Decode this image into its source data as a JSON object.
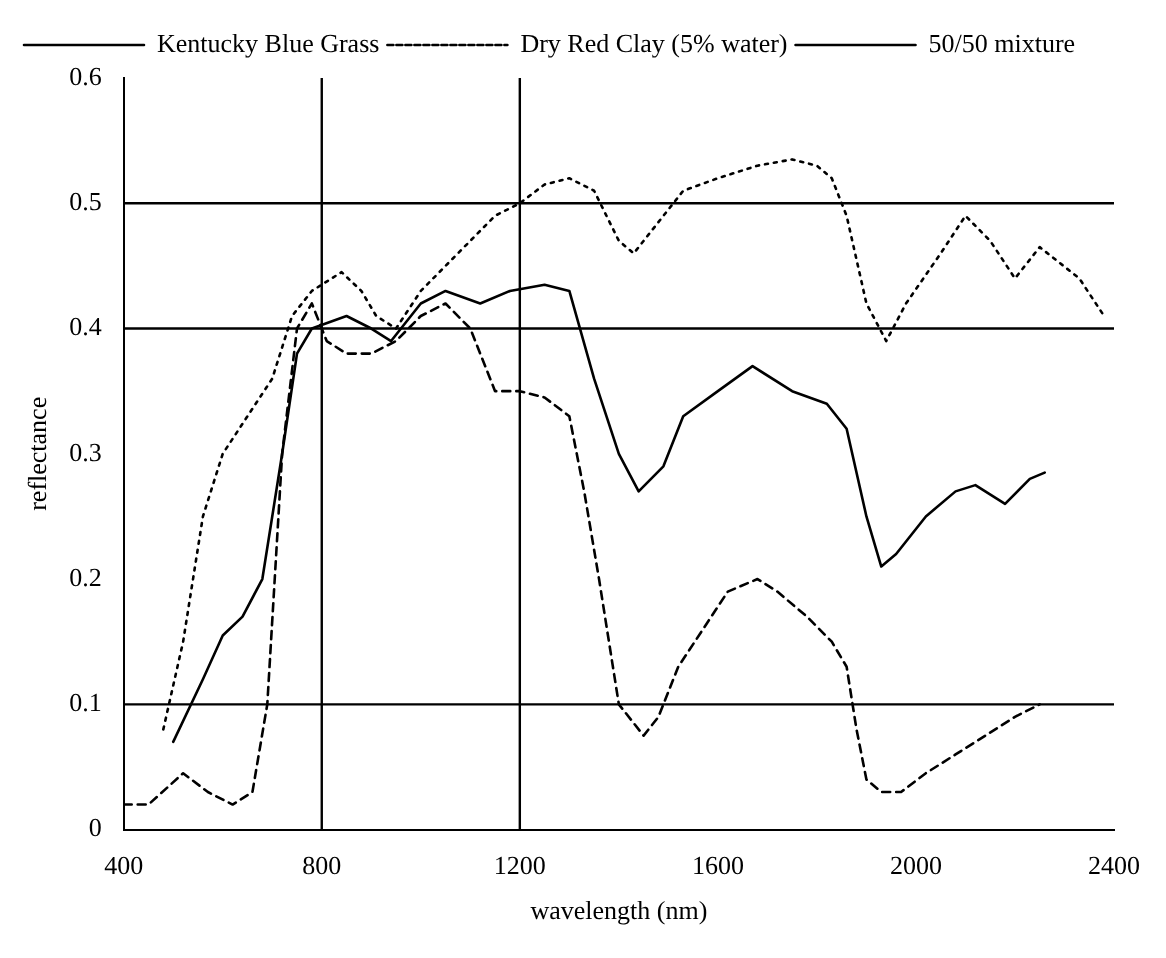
{
  "chart_data": {
    "type": "line",
    "xlabel": "wavelength (nm)",
    "ylabel": "reflectance",
    "xlim": [
      400,
      2400
    ],
    "xticks": [
      400,
      800,
      1200,
      1600,
      2000,
      2400
    ],
    "ylim": [
      0,
      0.6
    ],
    "yticks": [
      0,
      0.1,
      0.2,
      0.3,
      0.4,
      0.5,
      0.6
    ],
    "grid": false,
    "legend": "top left",
    "marker": "none",
    "ref_lines": [
      {
        "axis": "y",
        "value": 0.1,
        "color": "#000000"
      },
      {
        "axis": "y",
        "value": 0.4,
        "color": "#000000"
      },
      {
        "axis": "y",
        "value": 0.5,
        "color": "#000000"
      },
      {
        "axis": "x",
        "value": 800,
        "color": "#000000"
      },
      {
        "axis": "x",
        "value": 1200,
        "color": "#000000"
      }
    ],
    "series": [
      {
        "name": "Kentucky Blue Grass",
        "color": "#000000",
        "line_style": "dashed",
        "x": [
          400,
          450,
          520,
          570,
          620,
          660,
          690,
          720,
          750,
          780,
          810,
          850,
          900,
          950,
          1000,
          1050,
          1100,
          1150,
          1200,
          1250,
          1300,
          1330,
          1360,
          1400,
          1450,
          1480,
          1520,
          1570,
          1620,
          1680,
          1720,
          1780,
          1830,
          1860,
          1880,
          1900,
          1930,
          1970,
          2020,
          2080,
          2140,
          2200,
          2250
        ],
        "values": [
          0.02,
          0.02,
          0.045,
          0.03,
          0.02,
          0.03,
          0.1,
          0.3,
          0.4,
          0.42,
          0.39,
          0.38,
          0.38,
          0.39,
          0.41,
          0.42,
          0.4,
          0.35,
          0.35,
          0.345,
          0.33,
          0.27,
          0.2,
          0.1,
          0.075,
          0.09,
          0.13,
          0.16,
          0.19,
          0.2,
          0.19,
          0.17,
          0.15,
          0.13,
          0.08,
          0.04,
          0.03,
          0.03,
          0.045,
          0.06,
          0.075,
          0.09,
          0.1
        ]
      },
      {
        "name": "Dry Red Clay (5% water)",
        "color": "#000000",
        "line_style": "dotted",
        "x": [
          480,
          520,
          560,
          600,
          650,
          700,
          740,
          780,
          840,
          880,
          910,
          950,
          1000,
          1050,
          1100,
          1150,
          1200,
          1250,
          1300,
          1350,
          1400,
          1430,
          1470,
          1530,
          1600,
          1680,
          1750,
          1800,
          1830,
          1860,
          1900,
          1940,
          1980,
          2050,
          2100,
          2150,
          2200,
          2250,
          2330,
          2380
        ],
        "values": [
          0.08,
          0.15,
          0.25,
          0.3,
          0.33,
          0.36,
          0.41,
          0.43,
          0.445,
          0.43,
          0.41,
          0.4,
          0.43,
          0.45,
          0.47,
          0.49,
          0.5,
          0.515,
          0.52,
          0.51,
          0.47,
          0.46,
          0.48,
          0.51,
          0.52,
          0.53,
          0.535,
          0.53,
          0.52,
          0.49,
          0.42,
          0.39,
          0.42,
          0.46,
          0.49,
          0.47,
          0.44,
          0.465,
          0.44,
          0.41
        ]
      },
      {
        "name": "50/50 mixture",
        "color": "#000000",
        "line_style": "solid",
        "x": [
          500,
          560,
          600,
          640,
          680,
          720,
          750,
          780,
          850,
          900,
          940,
          1000,
          1050,
          1120,
          1180,
          1250,
          1300,
          1350,
          1400,
          1440,
          1490,
          1530,
          1600,
          1670,
          1750,
          1820,
          1860,
          1900,
          1930,
          1960,
          2020,
          2080,
          2120,
          2180,
          2230,
          2260
        ],
        "values": [
          0.07,
          0.12,
          0.155,
          0.17,
          0.2,
          0.3,
          0.38,
          0.4,
          0.41,
          0.4,
          0.39,
          0.42,
          0.43,
          0.42,
          0.43,
          0.435,
          0.43,
          0.36,
          0.3,
          0.27,
          0.29,
          0.33,
          0.35,
          0.37,
          0.35,
          0.34,
          0.32,
          0.25,
          0.21,
          0.22,
          0.25,
          0.27,
          0.275,
          0.26,
          0.28,
          0.285
        ]
      }
    ]
  }
}
